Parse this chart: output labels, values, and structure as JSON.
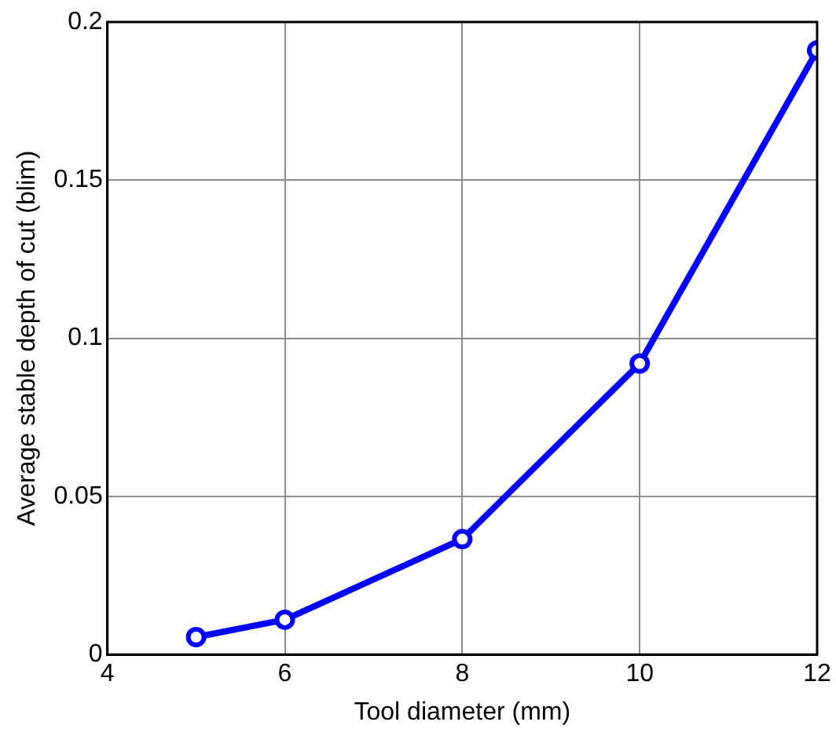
{
  "chart_data": {
    "type": "line",
    "xlabel": "Tool diameter (mm)",
    "ylabel": "Average stable depth of cut (blim)",
    "x": [
      5,
      6,
      8,
      10,
      12
    ],
    "series": [
      {
        "color": "#0000ff",
        "values": [
          0.0055,
          0.011,
          0.0365,
          0.092,
          0.191
        ]
      }
    ],
    "xlim": [
      4,
      12
    ],
    "xticks": [
      4,
      6,
      8,
      10,
      12
    ],
    "ylim": [
      0,
      0.2
    ],
    "yticks": [
      0,
      0.05,
      0.1,
      0.15,
      0.2
    ],
    "grid": true,
    "legend": false,
    "marker": "circle",
    "line_style": "solid"
  }
}
